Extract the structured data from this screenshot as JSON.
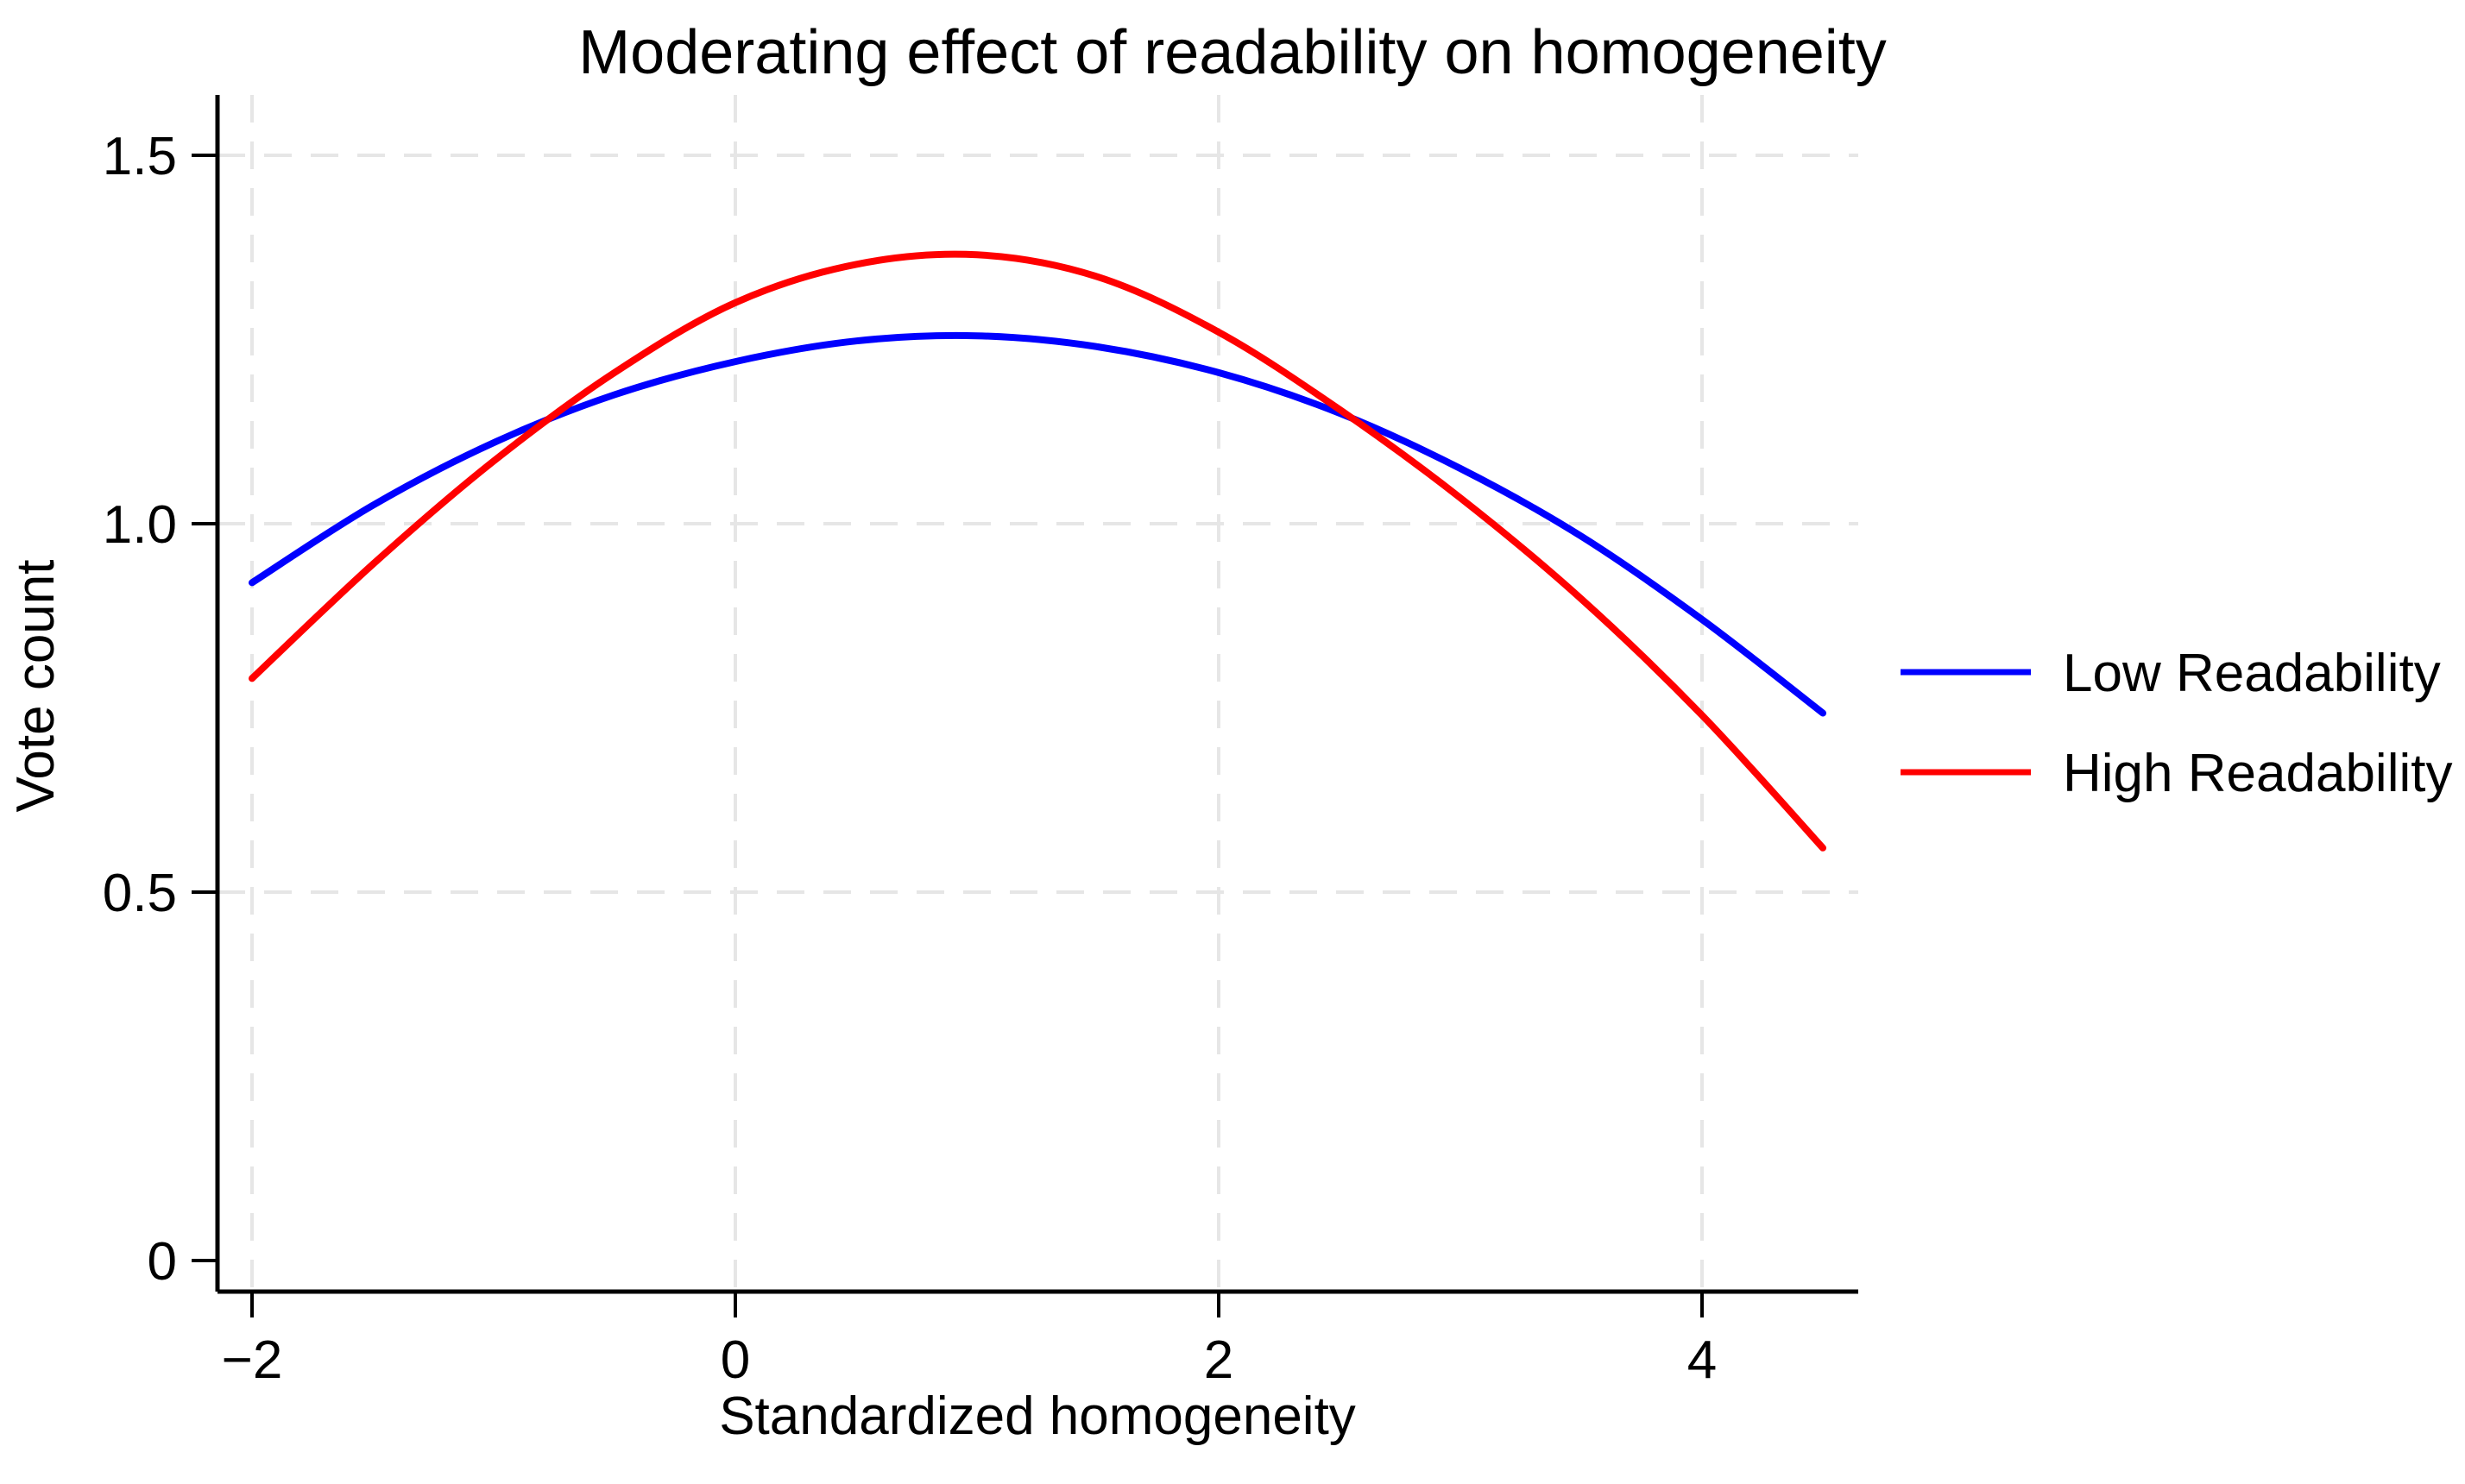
{
  "figure": {
    "background": "#ffffff",
    "text_color": "#000000"
  },
  "chart_data": {
    "type": "line",
    "title": "Moderating effect of readability on homogeneity",
    "xlabel": "Standardized homogeneity",
    "ylabel": "Vote count",
    "x": [
      -2,
      -1.5,
      -1,
      -0.5,
      0,
      0.5,
      1,
      1.5,
      2,
      2.5,
      3,
      3.5,
      4,
      4.5
    ],
    "series": [
      {
        "name": "Low Readability",
        "color": "#0000ff",
        "values": [
          0.92,
          1.025,
          1.11,
          1.175,
          1.22,
          1.248,
          1.255,
          1.24,
          1.205,
          1.15,
          1.075,
          0.983,
          0.87,
          0.743
        ]
      },
      {
        "name": "High Readability",
        "color": "#ff0000",
        "values": [
          0.79,
          0.945,
          1.085,
          1.205,
          1.3,
          1.352,
          1.365,
          1.335,
          1.26,
          1.155,
          1.035,
          0.898,
          0.74,
          0.56
        ]
      }
    ],
    "x_ticks": {
      "values": [
        -2,
        0,
        2,
        4
      ],
      "labels": [
        "−2",
        "0",
        "2",
        "4"
      ]
    },
    "y_ticks": {
      "values": [
        0,
        0.5,
        1.0,
        1.5
      ],
      "labels": [
        "0",
        "0.5",
        "1.0",
        "1.5"
      ]
    },
    "xlim": [
      -2.14,
      4.65
    ],
    "ylim": [
      -0.04,
      1.58
    ],
    "grid": "dashed",
    "grid_color": "#e6e6e6",
    "axis_color": "#000000",
    "legend_position": "right-middle",
    "curve_width": 8,
    "peaks_note": "blue peak ~1.26 near x=0.9, red peak ~1.37 near x=0.95; curves cross near x=-0.75 and x=2.55"
  }
}
